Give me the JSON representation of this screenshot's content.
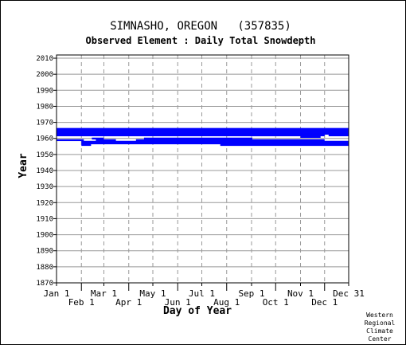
{
  "chart_data": {
    "type": "bar",
    "title": "SIMNASHO, OREGON   (357835)",
    "subtitle": "Observed Element : Daily Total Snowdepth",
    "xlabel": "Day of Year",
    "ylabel": "Year",
    "x_ticks_upper": [
      {
        "label": "Jan 1",
        "day": 1
      },
      {
        "label": "Mar 1",
        "day": 60
      },
      {
        "label": "May 1",
        "day": 121
      },
      {
        "label": "Jul 1",
        "day": 182
      },
      {
        "label": "Sep 1",
        "day": 244
      },
      {
        "label": "Nov 1",
        "day": 305
      },
      {
        "label": "Dec 31",
        "day": 365
      }
    ],
    "x_ticks_lower": [
      {
        "label": "Feb 1",
        "day": 32
      },
      {
        "label": "Apr 1",
        "day": 91
      },
      {
        "label": "Jun 1",
        "day": 152
      },
      {
        "label": "Aug 1",
        "day": 213
      },
      {
        "label": "Oct 1",
        "day": 274
      },
      {
        "label": "Dec 1",
        "day": 335
      }
    ],
    "xlim": [
      1,
      365
    ],
    "ylim": [
      1870,
      2012
    ],
    "y_ticks": [
      1870,
      1880,
      1890,
      1900,
      1910,
      1920,
      1930,
      1940,
      1950,
      1960,
      1970,
      1980,
      1990,
      2000,
      2010
    ],
    "grid": true,
    "record_segments": [
      {
        "year": 1966,
        "start_day": 1,
        "end_day": 365
      },
      {
        "year": 1965,
        "start_day": 1,
        "end_day": 365
      },
      {
        "year": 1964,
        "start_day": 1,
        "end_day": 365
      },
      {
        "year": 1963,
        "start_day": 1,
        "end_day": 365
      },
      {
        "year": 1962,
        "start_day": 1,
        "end_day": 335
      },
      {
        "year": 1962,
        "start_day": 340,
        "end_day": 365
      },
      {
        "year": 1961,
        "start_day": 305,
        "end_day": 330
      },
      {
        "year": 1960,
        "start_day": 45,
        "end_day": 60
      },
      {
        "year": 1960,
        "start_day": 110,
        "end_day": 245
      },
      {
        "year": 1959,
        "start_day": 1,
        "end_day": 35
      },
      {
        "year": 1959,
        "start_day": 50,
        "end_day": 75
      },
      {
        "year": 1959,
        "start_day": 100,
        "end_day": 335
      },
      {
        "year": 1958,
        "start_day": 32,
        "end_day": 365
      },
      {
        "year": 1957,
        "start_day": 32,
        "end_day": 365
      },
      {
        "year": 1956,
        "start_day": 32,
        "end_day": 44
      },
      {
        "year": 1956,
        "start_day": 205,
        "end_day": 365
      }
    ],
    "series_color": "#0000ff"
  },
  "footer": {
    "credit": [
      "Western",
      "Regional",
      "Climate",
      "Center"
    ]
  }
}
